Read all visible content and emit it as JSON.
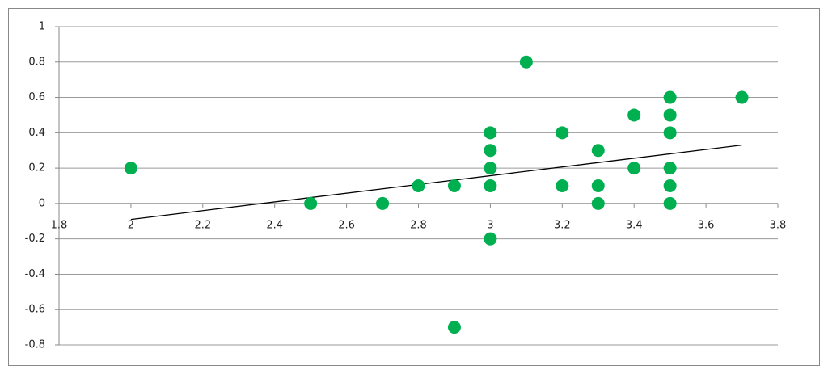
{
  "chart_data": {
    "type": "scatter",
    "series": [
      {
        "color": "#00b050",
        "x": [
          2,
          2.5,
          2.7,
          2.8,
          2.9,
          2.9,
          3,
          3,
          3,
          3,
          3,
          3.1,
          3.2,
          3.2,
          3.3,
          3.3,
          3.3,
          3.4,
          3.4,
          3.5,
          3.5,
          3.5,
          3.5,
          3.5,
          3.5,
          3.7
        ],
        "values": [
          0.2,
          0,
          0,
          0.1,
          0.1,
          -0.7,
          0.4,
          0.3,
          0.2,
          0.1,
          -0.2,
          0.8,
          0.4,
          0.1,
          0.3,
          0.1,
          0,
          0.5,
          0.2,
          0.6,
          0.5,
          0.4,
          0.2,
          0.1,
          0,
          0.6
        ]
      }
    ],
    "trendline": {
      "color": "#000000",
      "x": [
        2,
        3.7
      ],
      "values": [
        -0.09,
        0.33
      ]
    },
    "xlim": [
      1.8,
      3.8
    ],
    "xticks": [
      1.8,
      2,
      2.2,
      2.4,
      2.6,
      2.8,
      3,
      3.2,
      3.4,
      3.6,
      3.8
    ],
    "ylim": [
      -0.8,
      1
    ],
    "yticks": [
      -0.8,
      -0.6,
      -0.4,
      -0.2,
      0,
      0.2,
      0.4,
      0.6,
      0.8,
      1
    ],
    "grid": true
  }
}
